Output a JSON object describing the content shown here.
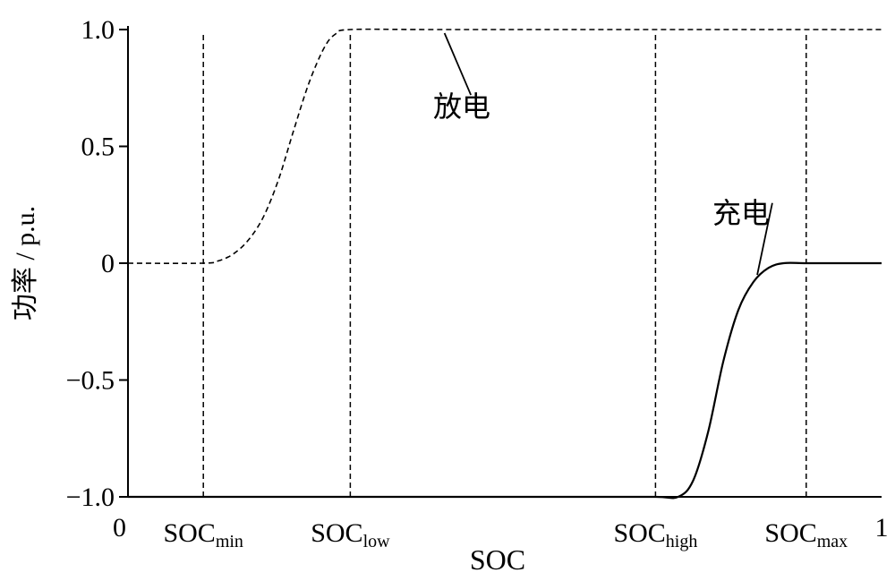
{
  "chart_data": {
    "type": "line",
    "xlabel": "SOC",
    "ylabel": "功率 / p.u.",
    "xlim": [
      0,
      1
    ],
    "ylim": [
      -1.0,
      1.0
    ],
    "x_ticks": [
      {
        "value": 0,
        "label": "0"
      },
      {
        "value": 1,
        "label": "1"
      }
    ],
    "y_ticks": [
      {
        "value": 1.0,
        "label": "1.0"
      },
      {
        "value": 0.5,
        "label": "0.5"
      },
      {
        "value": 0,
        "label": "0"
      },
      {
        "value": -0.5,
        "label": "−0.5"
      },
      {
        "value": -1.0,
        "label": "−1.0"
      }
    ],
    "soc_markers": [
      {
        "x": 0.1,
        "main": "SOC",
        "sub": "min"
      },
      {
        "x": 0.295,
        "main": "SOC",
        "sub": "low"
      },
      {
        "x": 0.7,
        "main": "SOC",
        "sub": "high"
      },
      {
        "x": 0.9,
        "main": "SOC",
        "sub": "max"
      }
    ],
    "series": [
      {
        "name": "放电",
        "style": "dashed",
        "x": [
          0,
          0.1,
          0.12,
          0.14,
          0.16,
          0.18,
          0.2,
          0.22,
          0.24,
          0.26,
          0.275,
          0.295,
          0.4,
          0.6,
          0.8,
          1.0
        ],
        "y": [
          0,
          0,
          0.01,
          0.04,
          0.1,
          0.2,
          0.36,
          0.57,
          0.77,
          0.92,
          0.98,
          1.0,
          1.0,
          1.0,
          1.0,
          1.0
        ]
      },
      {
        "name": "充电",
        "style": "solid",
        "x": [
          0,
          0.2,
          0.4,
          0.6,
          0.7,
          0.73,
          0.75,
          0.77,
          0.79,
          0.81,
          0.83,
          0.85,
          0.87,
          0.9,
          0.95,
          1.0
        ],
        "y": [
          -1.0,
          -1.0,
          -1.0,
          -1.0,
          -1.0,
          -1.0,
          -0.93,
          -0.72,
          -0.42,
          -0.2,
          -0.08,
          -0.02,
          0,
          0,
          0,
          0
        ]
      }
    ],
    "annotations": [
      {
        "text": "放电",
        "series": "放电"
      },
      {
        "text": "充电",
        "series": "充电"
      }
    ],
    "grid": false,
    "legend": "none"
  }
}
